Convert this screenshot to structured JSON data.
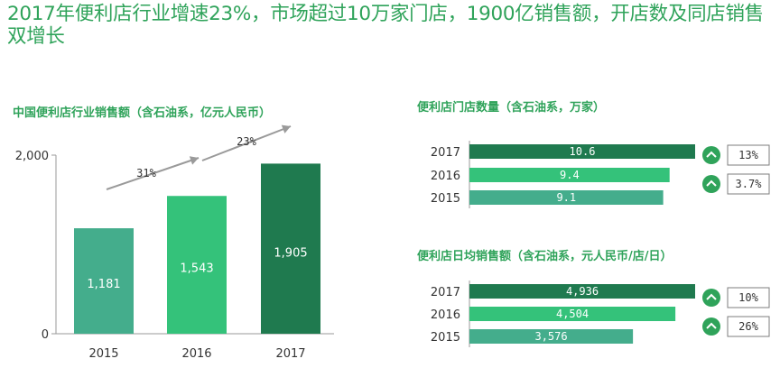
{
  "title": "2017年便利店行业增速23%，市场超过10万家门店，1900亿销售额，开店数及同店销售双增长",
  "chart_data": [
    {
      "type": "bar",
      "title": "中国便利店行业销售额（含石油系，亿元人民币）",
      "categories": [
        "2015",
        "2016",
        "2017"
      ],
      "values": [
        1181,
        1543,
        1905
      ],
      "value_labels": [
        "1,181",
        "1,543",
        "1,905"
      ],
      "ylim": [
        0,
        2000
      ],
      "yticks": [
        "0",
        "2,000"
      ],
      "colors": [
        "#44ad8c",
        "#34c27a",
        "#1f7a4f"
      ],
      "growth_annotations": [
        "31%",
        "23%"
      ]
    },
    {
      "type": "bar",
      "orientation": "horizontal",
      "title": "便利店门店数量（含石油系，万家）",
      "categories": [
        "2017",
        "2016",
        "2015"
      ],
      "values": [
        10.6,
        9.4,
        9.1
      ],
      "value_labels": [
        "10.6",
        "9.4",
        "9.1"
      ],
      "colors": [
        "#1f7a4f",
        "#34c27a",
        "#44ad8c"
      ],
      "growth": [
        "13%",
        "3.7%"
      ]
    },
    {
      "type": "bar",
      "orientation": "horizontal",
      "title": "便利店日均销售额（含石油系，元人民币/店/日）",
      "categories": [
        "2017",
        "2016",
        "2015"
      ],
      "values": [
        4936,
        4504,
        3576
      ],
      "value_labels": [
        "4,936",
        "4,504",
        "3,576"
      ],
      "colors": [
        "#1f7a4f",
        "#34c27a",
        "#44ad8c"
      ],
      "growth": [
        "10%",
        "26%"
      ]
    }
  ]
}
